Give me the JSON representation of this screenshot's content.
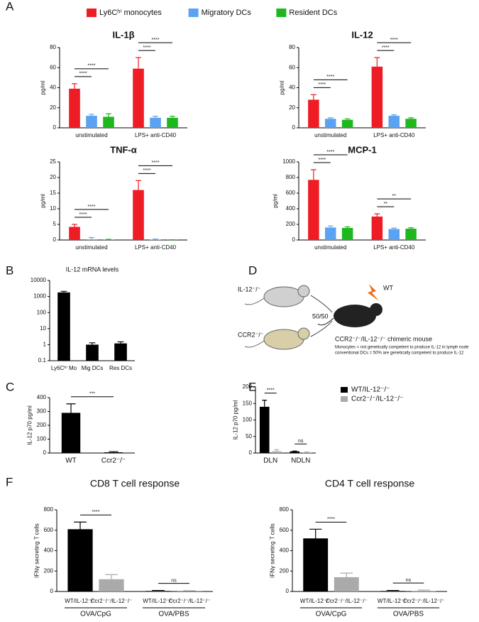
{
  "panel_labels": [
    "A",
    "B",
    "C",
    "D",
    "E",
    "F"
  ],
  "diagram": {
    "donor_1": "IL-12⁻/⁻",
    "donor_2": "CCR2⁻/⁻",
    "recipient": "WT",
    "ratio": "50/50",
    "result": "CCR2⁻/⁻/IL-12⁻/⁻ chimeric mouse",
    "notes": [
      "Monocytes = not genetically competent to produce IL-12 in lymph node",
      "conventional DCs = 50% are genetically competent to produce IL-12"
    ]
  },
  "chart_data": [
    {
      "type": "bar",
      "title": "IL-1β",
      "ylabel": "pg/ml",
      "legend": "top",
      "categories": [
        "unstimulated",
        "LPS+ anti-CD40"
      ],
      "series": [
        {
          "name": "Ly6Cʰⁱ monocytes",
          "color": "#ee1c25",
          "values": [
            39,
            59
          ],
          "errors": [
            5,
            11
          ]
        },
        {
          "name": "Migratory DCs",
          "color": "#5ba3f0",
          "values": [
            12,
            10
          ],
          "errors": [
            1.5,
            1.5
          ]
        },
        {
          "name": "Resident DCs",
          "color": "#1fb71f",
          "values": [
            11,
            10
          ],
          "errors": [
            3,
            1.5
          ]
        }
      ],
      "ylim": [
        0,
        80
      ],
      "yticks": [
        0,
        20,
        40,
        60,
        80
      ],
      "significance": [
        {
          "label": "****",
          "from": [
            0,
            0
          ],
          "to": [
            0,
            1
          ]
        },
        {
          "label": "****",
          "from": [
            0,
            0
          ],
          "to": [
            0,
            2
          ]
        },
        {
          "label": "****",
          "from": [
            1,
            0
          ],
          "to": [
            1,
            1
          ]
        },
        {
          "label": "****",
          "from": [
            1,
            0
          ],
          "to": [
            1,
            2
          ]
        }
      ]
    },
    {
      "type": "bar",
      "title": "IL-12",
      "ylabel": "pg/ml",
      "categories": [
        "unstimulated",
        "LPS+ anti-CD40"
      ],
      "series": [
        {
          "name": "Ly6Cʰⁱ monocytes",
          "color": "#ee1c25",
          "values": [
            28,
            61
          ],
          "errors": [
            5,
            9
          ]
        },
        {
          "name": "Migratory DCs",
          "color": "#5ba3f0",
          "values": [
            9,
            12
          ],
          "errors": [
            1,
            1
          ]
        },
        {
          "name": "Resident DCs",
          "color": "#1fb71f",
          "values": [
            8,
            9
          ],
          "errors": [
            1,
            1
          ]
        }
      ],
      "ylim": [
        0,
        80
      ],
      "yticks": [
        0,
        20,
        40,
        60,
        80
      ],
      "significance": [
        {
          "label": "****",
          "from": [
            0,
            0
          ],
          "to": [
            0,
            1
          ]
        },
        {
          "label": "****",
          "from": [
            0,
            0
          ],
          "to": [
            0,
            2
          ]
        },
        {
          "label": "****",
          "from": [
            1,
            0
          ],
          "to": [
            1,
            1
          ]
        },
        {
          "label": "****",
          "from": [
            1,
            0
          ],
          "to": [
            1,
            2
          ]
        }
      ]
    },
    {
      "type": "bar",
      "title": "TNF-α",
      "ylabel": "pg/ml",
      "categories": [
        "unstimulated",
        "LPS+ anti-CD40"
      ],
      "series": [
        {
          "name": "Ly6Cʰⁱ monocytes",
          "color": "#ee1c25",
          "values": [
            4.2,
            16
          ],
          "errors": [
            0.8,
            3
          ]
        },
        {
          "name": "Migratory DCs",
          "color": "#5ba3f0",
          "values": [
            0.2,
            0.1
          ],
          "errors": [
            0.6,
            0.2
          ]
        },
        {
          "name": "Resident DCs",
          "color": "#1fb71f",
          "values": [
            0.1,
            0.05
          ],
          "errors": [
            0.1,
            0.05
          ]
        }
      ],
      "ylim": [
        0,
        25
      ],
      "yticks": [
        0,
        5,
        10,
        15,
        20,
        25
      ],
      "significance": [
        {
          "label": "****",
          "from": [
            0,
            0
          ],
          "to": [
            0,
            1
          ]
        },
        {
          "label": "****",
          "from": [
            0,
            0
          ],
          "to": [
            0,
            2
          ]
        },
        {
          "label": "****",
          "from": [
            1,
            0
          ],
          "to": [
            1,
            1
          ]
        },
        {
          "label": "****",
          "from": [
            1,
            0
          ],
          "to": [
            1,
            2
          ]
        }
      ]
    },
    {
      "type": "bar",
      "title": "MCP-1",
      "ylabel": "pg/ml",
      "categories": [
        "unstimulated",
        "LPS+ anti-CD40"
      ],
      "series": [
        {
          "name": "Ly6Cʰⁱ monocytes",
          "color": "#ee1c25",
          "values": [
            770,
            300
          ],
          "errors": [
            130,
            35
          ]
        },
        {
          "name": "Migratory DCs",
          "color": "#5ba3f0",
          "values": [
            160,
            140
          ],
          "errors": [
            20,
            12
          ]
        },
        {
          "name": "Resident DCs",
          "color": "#1fb71f",
          "values": [
            155,
            145
          ],
          "errors": [
            15,
            12
          ]
        }
      ],
      "ylim": [
        0,
        1000
      ],
      "yticks": [
        0,
        200,
        400,
        600,
        800,
        1000
      ],
      "significance": [
        {
          "label": "****",
          "from": [
            0,
            0
          ],
          "to": [
            0,
            1
          ]
        },
        {
          "label": "****",
          "from": [
            0,
            0
          ],
          "to": [
            0,
            2
          ]
        },
        {
          "label": "**",
          "from": [
            1,
            0
          ],
          "to": [
            1,
            1
          ]
        },
        {
          "label": "**",
          "from": [
            1,
            0
          ],
          "to": [
            1,
            2
          ]
        }
      ]
    },
    {
      "type": "bar",
      "title": "IL-12 mRNA levels",
      "log_y": true,
      "categories": [
        "Ly6Cʰⁱ Mo",
        "Mig DCs",
        "Res DCs"
      ],
      "series": [
        {
          "color": "#000000",
          "values": [
            1800,
            1.0,
            1.2
          ],
          "errors": [
            300,
            0.3,
            0.3
          ]
        }
      ],
      "ylim": [
        0.1,
        10000
      ],
      "yticks": [
        0.1,
        1,
        10,
        100,
        1000,
        10000
      ]
    },
    {
      "type": "bar",
      "ylabel": "IL-12 p70 pg/ml",
      "categories": [
        "WT",
        "Ccr2⁻/⁻"
      ],
      "series": [
        {
          "color": "#000000",
          "values": [
            290,
            5
          ],
          "errors": [
            65,
            5
          ]
        }
      ],
      "ylim": [
        0,
        400
      ],
      "yticks": [
        0,
        100,
        200,
        300,
        400
      ],
      "significance": [
        {
          "label": "***",
          "from": [
            0,
            0
          ],
          "to": [
            1,
            0
          ]
        }
      ]
    },
    {
      "type": "bar",
      "ylabel": "IL-12 p70 pg/ml",
      "legend": "upper right",
      "categories": [
        "DLN",
        "NDLN"
      ],
      "series": [
        {
          "name": "WT/IL-12⁻/⁻",
          "color": "#000000",
          "values": [
            140,
            5
          ],
          "errors": [
            20,
            1
          ]
        },
        {
          "name": "Ccr2⁻/⁻/IL-12⁻/⁻",
          "color": "#aaaaaa",
          "values": [
            5,
            2
          ],
          "errors": [
            5,
            1
          ]
        }
      ],
      "ylim": [
        0,
        200
      ],
      "yticks": [
        0,
        50,
        100,
        150,
        200
      ],
      "significance": [
        {
          "label": "****",
          "from": [
            0,
            0
          ],
          "to": [
            0,
            1
          ]
        },
        {
          "label": "ns",
          "from": [
            1,
            0
          ],
          "to": [
            1,
            1
          ]
        }
      ]
    },
    {
      "type": "bar",
      "title": "CD8 T cell response",
      "ylabel": "IFNγ secreting T cells",
      "bar_labels": true,
      "categories": [
        "OVA/CpG",
        "OVA/PBS"
      ],
      "series": [
        {
          "name": "WT/IL-12⁻/⁻",
          "color": "#000000",
          "values": [
            610,
            5
          ],
          "errors": [
            70,
            5
          ]
        },
        {
          "name": "Ccr2⁻/⁻/IL-12⁻/⁻",
          "color": "#aaaaaa",
          "values": [
            120,
            2
          ],
          "errors": [
            45,
            5
          ]
        }
      ],
      "ylim": [
        0,
        800
      ],
      "yticks": [
        0,
        200,
        400,
        600,
        800
      ],
      "significance": [
        {
          "label": "****",
          "from": [
            0,
            0
          ],
          "to": [
            0,
            1
          ]
        },
        {
          "label": "ns",
          "from": [
            1,
            0
          ],
          "to": [
            1,
            1
          ]
        }
      ]
    },
    {
      "type": "bar",
      "title": "CD4 T cell response",
      "ylabel": "IFNγ secreting T cells",
      "bar_labels": true,
      "categories": [
        "OVA/CpG",
        "OVA/PBS"
      ],
      "series": [
        {
          "name": "WT/IL-12⁻/⁻",
          "color": "#000000",
          "values": [
            520,
            5
          ],
          "errors": [
            90,
            5
          ]
        },
        {
          "name": "Ccr2⁻/⁻/IL-12⁻/⁻",
          "color": "#aaaaaa",
          "values": [
            140,
            5
          ],
          "errors": [
            40,
            8
          ]
        }
      ],
      "ylim": [
        0,
        800
      ],
      "yticks": [
        0,
        200,
        400,
        600,
        800
      ],
      "significance": [
        {
          "label": "****",
          "from": [
            0,
            0
          ],
          "to": [
            0,
            1
          ]
        },
        {
          "label": "ns",
          "from": [
            1,
            0
          ],
          "to": [
            1,
            1
          ]
        }
      ]
    }
  ]
}
